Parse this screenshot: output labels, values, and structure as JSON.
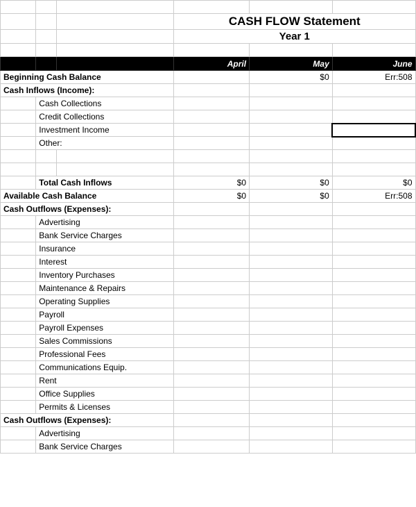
{
  "colors": {
    "grid": "#cccccc",
    "header_bg": "#000000",
    "header_fg": "#ffffff",
    "accent_orange": "#e69138",
    "text": "#000000",
    "background": "#ffffff"
  },
  "title": "CASH FLOW Statement",
  "subtitle": "Year 1",
  "months": [
    "April",
    "May",
    "June"
  ],
  "rows": {
    "beginning_balance": {
      "label": "Beginning Cash Balance",
      "april": "",
      "may": "$0",
      "june": "Err:508"
    },
    "inflows_header": {
      "label": "Cash Inflows (Income):"
    },
    "inflow_items": [
      {
        "label": "Cash Collections",
        "april": "",
        "may": "",
        "june": ""
      },
      {
        "label": "Credit Collections",
        "april": "",
        "may": "",
        "june": ""
      },
      {
        "label": "Investment Income",
        "april": "",
        "may": "",
        "june": "",
        "orange": true,
        "selected": true
      },
      {
        "label": "Other:",
        "april": "",
        "may": "",
        "june": ""
      }
    ],
    "total_inflows": {
      "label": "Total Cash Inflows",
      "april": "$0",
      "may": "$0",
      "june": "$0"
    },
    "available": {
      "label": "Available Cash Balance",
      "april": "$0",
      "may": "$0",
      "june": "Err:508"
    },
    "outflows1_header": {
      "label": "Cash Outflows (Expenses):"
    },
    "outflow1_items": [
      {
        "label": "Advertising"
      },
      {
        "label": "Bank Service Charges"
      },
      {
        "label": "Insurance"
      },
      {
        "label": "Interest"
      },
      {
        "label": "Inventory Purchases"
      },
      {
        "label": "Maintenance & Repairs"
      },
      {
        "label": "Operating Supplies"
      },
      {
        "label": "Payroll"
      },
      {
        "label": "Payroll Expenses"
      },
      {
        "label": "Sales Commissions"
      },
      {
        "label": "Professional Fees"
      },
      {
        "label": "Communications Equip."
      },
      {
        "label": "Rent"
      },
      {
        "label": "Office Supplies"
      },
      {
        "label": "Permits & Licenses"
      }
    ],
    "outflows2_header": {
      "label": "Cash Outflows (Expenses):"
    },
    "outflow2_items": [
      {
        "label": "Advertising"
      },
      {
        "label": "Bank Service Charges"
      }
    ]
  }
}
